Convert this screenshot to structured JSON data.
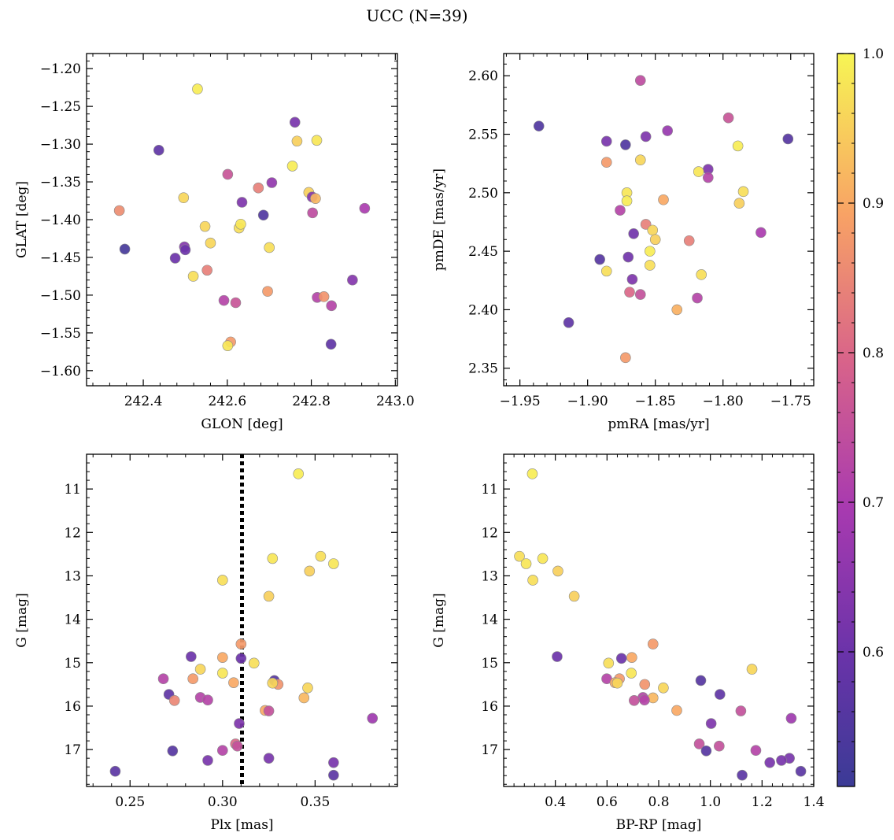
{
  "figure": {
    "title": "UCC (N=39)"
  },
  "colorbar": {
    "ticks": [
      0.6,
      0.7,
      0.8,
      0.9,
      1.0
    ],
    "tick_labels": [
      "0.6",
      "0.7",
      "0.8",
      "0.9",
      "1.0"
    ],
    "range": [
      0.51,
      1.0
    ],
    "colormap": "plasma"
  },
  "chart_data": [
    {
      "type": "scatter",
      "title": "",
      "xlabel": "GLON [deg]",
      "ylabel": "GLAT [deg]",
      "xlim": [
        242.265,
        243.005
      ],
      "ylim": [
        -1.62,
        -1.18
      ],
      "y_inverted": false,
      "xticks": [
        242.4,
        242.6,
        242.8,
        243.0
      ],
      "xtick_labels": [
        "242.4",
        "242.6",
        "242.8",
        "243.0"
      ],
      "yticks": [
        -1.6,
        -1.55,
        -1.5,
        -1.45,
        -1.4,
        -1.35,
        -1.3,
        -1.25,
        -1.2
      ],
      "ytick_labels": [
        "−1.60",
        "−1.55",
        "−1.50",
        "−1.45",
        "−1.40",
        "−1.35",
        "−1.30",
        "−1.25",
        "−1.20"
      ],
      "points": [
        {
          "x": 242.529,
          "y": -1.227,
          "c": 0.99
        },
        {
          "x": 242.761,
          "y": -1.271,
          "c": 0.62
        },
        {
          "x": 242.437,
          "y": -1.308,
          "c": 0.58
        },
        {
          "x": 242.766,
          "y": -1.296,
          "c": 0.95
        },
        {
          "x": 242.813,
          "y": -1.295,
          "c": 0.98
        },
        {
          "x": 242.755,
          "y": -1.329,
          "c": 0.99
        },
        {
          "x": 242.601,
          "y": -1.34,
          "c": 0.76
        },
        {
          "x": 242.706,
          "y": -1.351,
          "c": 0.66
        },
        {
          "x": 242.674,
          "y": -1.358,
          "c": 0.84
        },
        {
          "x": 242.343,
          "y": -1.388,
          "c": 0.86
        },
        {
          "x": 242.496,
          "y": -1.371,
          "c": 0.96
        },
        {
          "x": 242.794,
          "y": -1.364,
          "c": 0.95
        },
        {
          "x": 242.802,
          "y": -1.37,
          "c": 0.64
        },
        {
          "x": 242.81,
          "y": -1.372,
          "c": 0.92
        },
        {
          "x": 242.635,
          "y": -1.377,
          "c": 0.63
        },
        {
          "x": 242.927,
          "y": -1.385,
          "c": 0.7
        },
        {
          "x": 242.803,
          "y": -1.391,
          "c": 0.74
        },
        {
          "x": 242.686,
          "y": -1.394,
          "c": 0.55
        },
        {
          "x": 242.547,
          "y": -1.409,
          "c": 0.96
        },
        {
          "x": 242.628,
          "y": -1.411,
          "c": 0.97
        },
        {
          "x": 242.632,
          "y": -1.406,
          "c": 0.98
        },
        {
          "x": 242.56,
          "y": -1.431,
          "c": 0.96
        },
        {
          "x": 242.7,
          "y": -1.437,
          "c": 0.97
        },
        {
          "x": 242.356,
          "y": -1.439,
          "c": 0.53
        },
        {
          "x": 242.498,
          "y": -1.436,
          "c": 0.64
        },
        {
          "x": 242.5,
          "y": -1.44,
          "c": 0.6
        },
        {
          "x": 242.476,
          "y": -1.451,
          "c": 0.6
        },
        {
          "x": 242.552,
          "y": -1.467,
          "c": 0.84
        },
        {
          "x": 242.519,
          "y": -1.475,
          "c": 0.97
        },
        {
          "x": 242.898,
          "y": -1.48,
          "c": 0.64
        },
        {
          "x": 242.696,
          "y": -1.495,
          "c": 0.88
        },
        {
          "x": 242.814,
          "y": -1.503,
          "c": 0.72
        },
        {
          "x": 242.83,
          "y": -1.502,
          "c": 0.87
        },
        {
          "x": 242.592,
          "y": -1.507,
          "c": 0.72
        },
        {
          "x": 242.62,
          "y": -1.51,
          "c": 0.76
        },
        {
          "x": 242.848,
          "y": -1.514,
          "c": 0.72
        },
        {
          "x": 242.608,
          "y": -1.562,
          "c": 0.88
        },
        {
          "x": 242.601,
          "y": -1.567,
          "c": 0.98
        },
        {
          "x": 242.847,
          "y": -1.565,
          "c": 0.58
        }
      ]
    },
    {
      "type": "scatter",
      "title": "",
      "xlabel": "pmRA [mas/yr]",
      "ylabel": "pmDE [mas/yr]",
      "xlim": [
        -1.962,
        -1.733
      ],
      "ylim": [
        2.335,
        2.619
      ],
      "y_inverted": false,
      "xticks": [
        -1.95,
        -1.9,
        -1.85,
        -1.8,
        -1.75
      ],
      "xtick_labels": [
        "−1.95",
        "−1.90",
        "−1.85",
        "−1.80",
        "−1.75"
      ],
      "yticks": [
        2.35,
        2.4,
        2.45,
        2.5,
        2.55,
        2.6
      ],
      "ytick_labels": [
        "2.35",
        "2.40",
        "2.45",
        "2.50",
        "2.55",
        "2.60"
      ],
      "points": [
        {
          "x": -1.861,
          "y": 2.596,
          "c": 0.74
        },
        {
          "x": -1.796,
          "y": 2.564,
          "c": 0.76
        },
        {
          "x": -1.936,
          "y": 2.557,
          "c": 0.55
        },
        {
          "x": -1.841,
          "y": 2.553,
          "c": 0.67
        },
        {
          "x": -1.857,
          "y": 2.548,
          "c": 0.63
        },
        {
          "x": -1.752,
          "y": 2.546,
          "c": 0.56
        },
        {
          "x": -1.886,
          "y": 2.544,
          "c": 0.62
        },
        {
          "x": -1.872,
          "y": 2.541,
          "c": 0.55
        },
        {
          "x": -1.789,
          "y": 2.54,
          "c": 0.99
        },
        {
          "x": -1.861,
          "y": 2.528,
          "c": 0.96
        },
        {
          "x": -1.886,
          "y": 2.526,
          "c": 0.88
        },
        {
          "x": -1.811,
          "y": 2.52,
          "c": 0.63
        },
        {
          "x": -1.818,
          "y": 2.518,
          "c": 0.98
        },
        {
          "x": -1.811,
          "y": 2.513,
          "c": 0.72
        },
        {
          "x": -1.785,
          "y": 2.501,
          "c": 0.97
        },
        {
          "x": -1.871,
          "y": 2.5,
          "c": 0.98
        },
        {
          "x": -1.844,
          "y": 2.494,
          "c": 0.9
        },
        {
          "x": -1.871,
          "y": 2.493,
          "c": 0.99
        },
        {
          "x": -1.788,
          "y": 2.491,
          "c": 0.95
        },
        {
          "x": -1.876,
          "y": 2.485,
          "c": 0.72
        },
        {
          "x": -1.857,
          "y": 2.473,
          "c": 0.84
        },
        {
          "x": -1.852,
          "y": 2.468,
          "c": 0.96
        },
        {
          "x": -1.772,
          "y": 2.466,
          "c": 0.7
        },
        {
          "x": -1.866,
          "y": 2.465,
          "c": 0.61
        },
        {
          "x": -1.85,
          "y": 2.46,
          "c": 0.95
        },
        {
          "x": -1.825,
          "y": 2.459,
          "c": 0.84
        },
        {
          "x": -1.854,
          "y": 2.45,
          "c": 0.99
        },
        {
          "x": -1.87,
          "y": 2.445,
          "c": 0.61
        },
        {
          "x": -1.891,
          "y": 2.443,
          "c": 0.56
        },
        {
          "x": -1.854,
          "y": 2.438,
          "c": 0.97
        },
        {
          "x": -1.886,
          "y": 2.433,
          "c": 0.97
        },
        {
          "x": -1.816,
          "y": 2.43,
          "c": 0.97
        },
        {
          "x": -1.867,
          "y": 2.426,
          "c": 0.63
        },
        {
          "x": -1.869,
          "y": 2.415,
          "c": 0.8
        },
        {
          "x": -1.861,
          "y": 2.413,
          "c": 0.75
        },
        {
          "x": -1.819,
          "y": 2.41,
          "c": 0.72
        },
        {
          "x": -1.834,
          "y": 2.4,
          "c": 0.91
        },
        {
          "x": -1.914,
          "y": 2.389,
          "c": 0.58
        },
        {
          "x": -1.872,
          "y": 2.359,
          "c": 0.88
        }
      ]
    },
    {
      "type": "scatter",
      "title": "",
      "xlabel": "Plx [mas]",
      "ylabel": "G [mag]",
      "xlim": [
        0.2265,
        0.3945
      ],
      "ylim": [
        17.85,
        10.2
      ],
      "y_inverted": true,
      "vline": {
        "x": 0.3105,
        "style": "dotted"
      },
      "xticks": [
        0.25,
        0.3,
        0.35
      ],
      "xtick_labels": [
        "0.25",
        "0.30",
        "0.35"
      ],
      "yticks": [
        11,
        12,
        13,
        14,
        15,
        16,
        17
      ],
      "ytick_labels": [
        "11",
        "12",
        "13",
        "14",
        "15",
        "16",
        "17"
      ],
      "points": [
        {
          "x": 0.341,
          "y": 10.65,
          "c": 0.99
        },
        {
          "x": 0.353,
          "y": 12.55,
          "c": 0.97
        },
        {
          "x": 0.327,
          "y": 12.6,
          "c": 0.98
        },
        {
          "x": 0.36,
          "y": 12.72,
          "c": 0.98
        },
        {
          "x": 0.347,
          "y": 12.89,
          "c": 0.95
        },
        {
          "x": 0.3,
          "y": 13.1,
          "c": 0.97
        },
        {
          "x": 0.325,
          "y": 13.47,
          "c": 0.95
        },
        {
          "x": 0.31,
          "y": 14.57,
          "c": 0.88
        },
        {
          "x": 0.283,
          "y": 14.86,
          "c": 0.6
        },
        {
          "x": 0.3,
          "y": 14.88,
          "c": 0.9
        },
        {
          "x": 0.31,
          "y": 14.9,
          "c": 0.6
        },
        {
          "x": 0.317,
          "y": 15.01,
          "c": 0.97
        },
        {
          "x": 0.288,
          "y": 15.15,
          "c": 0.96
        },
        {
          "x": 0.3,
          "y": 15.24,
          "c": 0.98
        },
        {
          "x": 0.268,
          "y": 15.37,
          "c": 0.72
        },
        {
          "x": 0.284,
          "y": 15.37,
          "c": 0.88
        },
        {
          "x": 0.328,
          "y": 15.41,
          "c": 0.56
        },
        {
          "x": 0.306,
          "y": 15.46,
          "c": 0.9
        },
        {
          "x": 0.33,
          "y": 15.5,
          "c": 0.87
        },
        {
          "x": 0.327,
          "y": 15.47,
          "c": 0.96
        },
        {
          "x": 0.346,
          "y": 15.58,
          "c": 0.96
        },
        {
          "x": 0.271,
          "y": 15.73,
          "c": 0.58
        },
        {
          "x": 0.344,
          "y": 15.81,
          "c": 0.92
        },
        {
          "x": 0.288,
          "y": 15.8,
          "c": 0.72
        },
        {
          "x": 0.274,
          "y": 15.87,
          "c": 0.85
        },
        {
          "x": 0.292,
          "y": 15.86,
          "c": 0.72
        },
        {
          "x": 0.323,
          "y": 16.1,
          "c": 0.9
        },
        {
          "x": 0.325,
          "y": 16.11,
          "c": 0.75
        },
        {
          "x": 0.381,
          "y": 16.28,
          "c": 0.68
        },
        {
          "x": 0.309,
          "y": 16.4,
          "c": 0.63
        },
        {
          "x": 0.307,
          "y": 16.87,
          "c": 0.8
        },
        {
          "x": 0.308,
          "y": 16.92,
          "c": 0.75
        },
        {
          "x": 0.3,
          "y": 17.02,
          "c": 0.72
        },
        {
          "x": 0.273,
          "y": 17.03,
          "c": 0.56
        },
        {
          "x": 0.325,
          "y": 17.2,
          "c": 0.62
        },
        {
          "x": 0.292,
          "y": 17.25,
          "c": 0.62
        },
        {
          "x": 0.36,
          "y": 17.3,
          "c": 0.62
        },
        {
          "x": 0.242,
          "y": 17.5,
          "c": 0.57
        },
        {
          "x": 0.36,
          "y": 17.59,
          "c": 0.57
        }
      ]
    },
    {
      "type": "scatter",
      "title": "",
      "xlabel": "BP-RP [mag]",
      "ylabel": "G [mag]",
      "xlim": [
        0.2,
        1.4
      ],
      "ylim": [
        17.85,
        10.2
      ],
      "y_inverted": true,
      "xticks": [
        0.4,
        0.6,
        0.8,
        1.0,
        1.2,
        1.4
      ],
      "xtick_labels": [
        "0.4",
        "0.6",
        "0.8",
        "1.0",
        "1.2",
        "1.4"
      ],
      "yticks": [
        11,
        12,
        13,
        14,
        15,
        16,
        17
      ],
      "ytick_labels": [
        "11",
        "12",
        "13",
        "14",
        "15",
        "16",
        "17"
      ],
      "points": [
        {
          "x": 0.311,
          "y": 10.65,
          "c": 0.99
        },
        {
          "x": 0.261,
          "y": 12.55,
          "c": 0.97
        },
        {
          "x": 0.351,
          "y": 12.6,
          "c": 0.98
        },
        {
          "x": 0.287,
          "y": 12.72,
          "c": 0.98
        },
        {
          "x": 0.41,
          "y": 12.89,
          "c": 0.95
        },
        {
          "x": 0.313,
          "y": 13.1,
          "c": 0.97
        },
        {
          "x": 0.473,
          "y": 13.47,
          "c": 0.95
        },
        {
          "x": 0.778,
          "y": 14.57,
          "c": 0.88
        },
        {
          "x": 0.407,
          "y": 14.86,
          "c": 0.6
        },
        {
          "x": 0.656,
          "y": 14.9,
          "c": 0.6
        },
        {
          "x": 0.696,
          "y": 14.88,
          "c": 0.9
        },
        {
          "x": 0.606,
          "y": 15.01,
          "c": 0.97
        },
        {
          "x": 1.161,
          "y": 15.15,
          "c": 0.96
        },
        {
          "x": 0.694,
          "y": 15.24,
          "c": 0.98
        },
        {
          "x": 0.599,
          "y": 15.37,
          "c": 0.72
        },
        {
          "x": 0.648,
          "y": 15.37,
          "c": 0.88
        },
        {
          "x": 0.963,
          "y": 15.41,
          "c": 0.56
        },
        {
          "x": 0.631,
          "y": 15.46,
          "c": 0.9
        },
        {
          "x": 0.746,
          "y": 15.5,
          "c": 0.87
        },
        {
          "x": 0.64,
          "y": 15.47,
          "c": 0.96
        },
        {
          "x": 0.818,
          "y": 15.58,
          "c": 0.96
        },
        {
          "x": 1.037,
          "y": 15.73,
          "c": 0.58
        },
        {
          "x": 0.778,
          "y": 15.81,
          "c": 0.92
        },
        {
          "x": 0.739,
          "y": 15.8,
          "c": 0.72
        },
        {
          "x": 0.705,
          "y": 15.87,
          "c": 0.75
        },
        {
          "x": 0.745,
          "y": 15.86,
          "c": 0.72
        },
        {
          "x": 0.87,
          "y": 16.1,
          "c": 0.9
        },
        {
          "x": 1.118,
          "y": 16.11,
          "c": 0.75
        },
        {
          "x": 1.313,
          "y": 16.28,
          "c": 0.68
        },
        {
          "x": 1.003,
          "y": 16.4,
          "c": 0.63
        },
        {
          "x": 0.957,
          "y": 16.87,
          "c": 0.75
        },
        {
          "x": 1.034,
          "y": 16.92,
          "c": 0.75
        },
        {
          "x": 1.176,
          "y": 17.02,
          "c": 0.72
        },
        {
          "x": 0.984,
          "y": 17.03,
          "c": 0.56
        },
        {
          "x": 1.306,
          "y": 17.2,
          "c": 0.62
        },
        {
          "x": 1.275,
          "y": 17.25,
          "c": 0.62
        },
        {
          "x": 1.23,
          "y": 17.3,
          "c": 0.62
        },
        {
          "x": 1.35,
          "y": 17.5,
          "c": 0.57
        },
        {
          "x": 1.123,
          "y": 17.59,
          "c": 0.57
        }
      ]
    }
  ]
}
